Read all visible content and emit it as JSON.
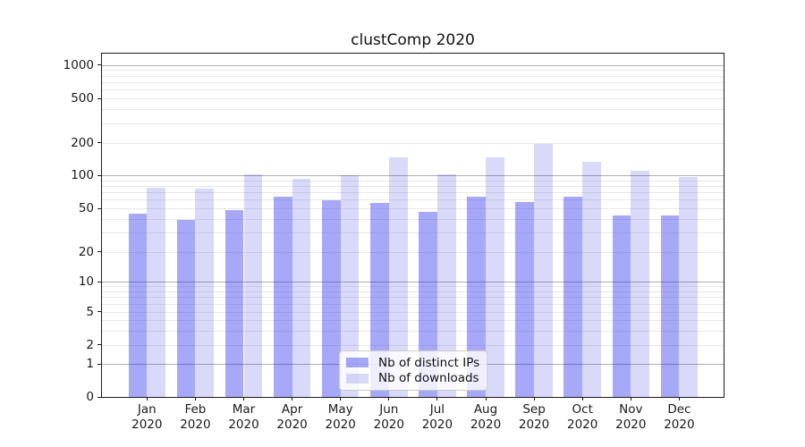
{
  "chart_data": {
    "type": "bar",
    "title": "clustComp 2020",
    "grid": true,
    "y_scale": "log-like (1-2-5 ticks with 0 baseline, symlog)",
    "y_ticks": [
      0,
      1,
      2,
      5,
      10,
      20,
      50,
      100,
      200,
      500,
      1000
    ],
    "ylim": [
      0,
      1300
    ],
    "legend_position": "lower center",
    "categories": [
      {
        "month": "Jan",
        "year": "2020"
      },
      {
        "month": "Feb",
        "year": "2020"
      },
      {
        "month": "Mar",
        "year": "2020"
      },
      {
        "month": "Apr",
        "year": "2020"
      },
      {
        "month": "May",
        "year": "2020"
      },
      {
        "month": "Jun",
        "year": "2020"
      },
      {
        "month": "Jul",
        "year": "2020"
      },
      {
        "month": "Aug",
        "year": "2020"
      },
      {
        "month": "Sep",
        "year": "2020"
      },
      {
        "month": "Oct",
        "year": "2020"
      },
      {
        "month": "Nov",
        "year": "2020"
      },
      {
        "month": "Dec",
        "year": "2020"
      }
    ],
    "series": [
      {
        "name": "Nb of distinct IPs",
        "color": "rgba(0,0,235,0.34)",
        "values": [
          45,
          39,
          48,
          64,
          59,
          56,
          46,
          64,
          57,
          64,
          43,
          43
        ]
      },
      {
        "name": "Nb of downloads",
        "color": "rgba(0,0,220,0.15)",
        "values": [
          78,
          76,
          103,
          93,
          100,
          148,
          103,
          146,
          195,
          133,
          111,
          98
        ]
      }
    ],
    "colors": {
      "major_gridline": "#b0b0b0",
      "minor_gridline": "#e8e8e8",
      "axis": "#1a1a1a",
      "distinct_ips_bar": "#a8a8f7",
      "downloads_bar": "#d8d8f9"
    }
  }
}
